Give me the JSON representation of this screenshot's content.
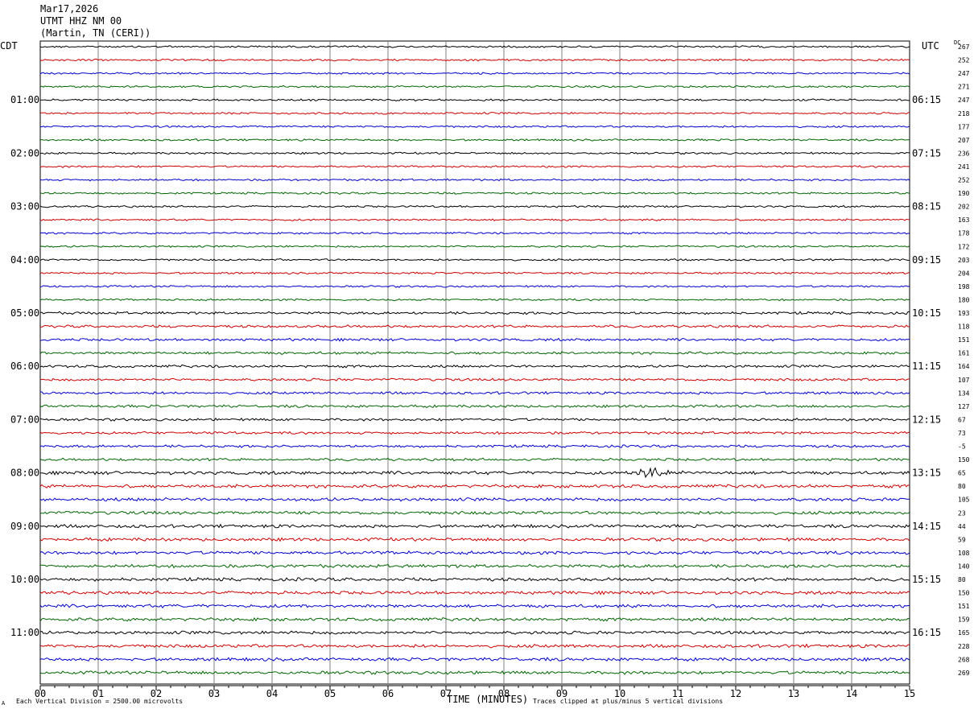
{
  "header": {
    "date": "Mar17,2026",
    "station": "UTMT HHZ NM 00",
    "location": "(Martin, TN (CERI))"
  },
  "left_tz": "CDT",
  "right_tz": "UTC",
  "dc_label": "DC",
  "footer": {
    "scale": "Each Vertical Division = 2500.00 microvolts",
    "xlabel": "TIME (MINUTES)",
    "clip": "Traces clipped at plus/minus 5 vertical divisions",
    "corner": "A"
  },
  "colors": {
    "trace_cycle": [
      "#000000",
      "#cc0000",
      "#0000cc",
      "#006600"
    ],
    "grid": "#808080"
  },
  "chart_data": {
    "type": "line",
    "title": "",
    "xlabel": "TIME (MINUTES)",
    "ylabel": "",
    "xlim": [
      0,
      15
    ],
    "x_ticks": [
      "00",
      "01",
      "02",
      "03",
      "04",
      "05",
      "06",
      "07",
      "08",
      "09",
      "10",
      "11",
      "12",
      "13",
      "14",
      "15"
    ],
    "left_time_labels": [
      "01:00",
      "02:00",
      "03:00",
      "04:00",
      "05:00",
      "06:00",
      "07:00",
      "08:00",
      "09:00",
      "10:00",
      "11:00"
    ],
    "right_time_labels": [
      "06:15",
      "07:15",
      "08:15",
      "09:15",
      "10:15",
      "11:15",
      "12:15",
      "13:15",
      "14:15",
      "15:15",
      "16:15"
    ],
    "trace_count": 48,
    "dc_offsets": [
      267,
      252,
      247,
      271,
      247,
      218,
      177,
      207,
      236,
      241,
      252,
      190,
      202,
      163,
      178,
      172,
      203,
      204,
      198,
      180,
      193,
      118,
      151,
      161,
      164,
      107,
      134,
      127,
      67,
      73,
      -5,
      150,
      65,
      80,
      105,
      23,
      44,
      59,
      108,
      140,
      80,
      150,
      151,
      159,
      165,
      228,
      268,
      269
    ],
    "events": [
      {
        "trace": 32,
        "minute": 10.55,
        "amplitude": 1.0
      }
    ]
  }
}
